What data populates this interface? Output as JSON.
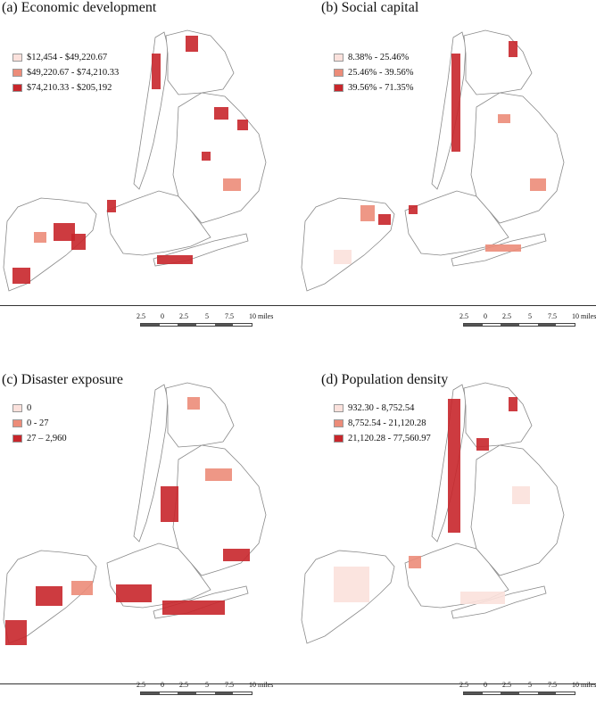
{
  "colors": {
    "class_low": "#fbe1dc",
    "class_mid": "#ec8c79",
    "class_high": "#c8262b",
    "boundary": "#8a8a8a"
  },
  "panels": [
    {
      "title": "(a) Economic development",
      "legend": [
        "$12,454 - $49,220.67",
        "$49,220.67 - $74,210.33",
        "$74,210.33 - $205,192"
      ]
    },
    {
      "title": "(b) Social capital",
      "legend": [
        "8.38% - 25.46%",
        "25.46% - 39.56%",
        "39.56% - 71.35%"
      ]
    },
    {
      "title": "(c) Disaster exposure",
      "legend": [
        "0",
        "0 - 27",
        "27 – 2,960"
      ]
    },
    {
      "title": "(d) Population density",
      "legend": [
        "932.30 - 8,752.54",
        "8,752.54 - 21,120.28",
        "21,120.28 - 77,560.97"
      ]
    }
  ],
  "scale_bar": {
    "labels": [
      "2.5",
      "0",
      "2.5",
      "5",
      "7.5",
      "10 miles"
    ]
  }
}
